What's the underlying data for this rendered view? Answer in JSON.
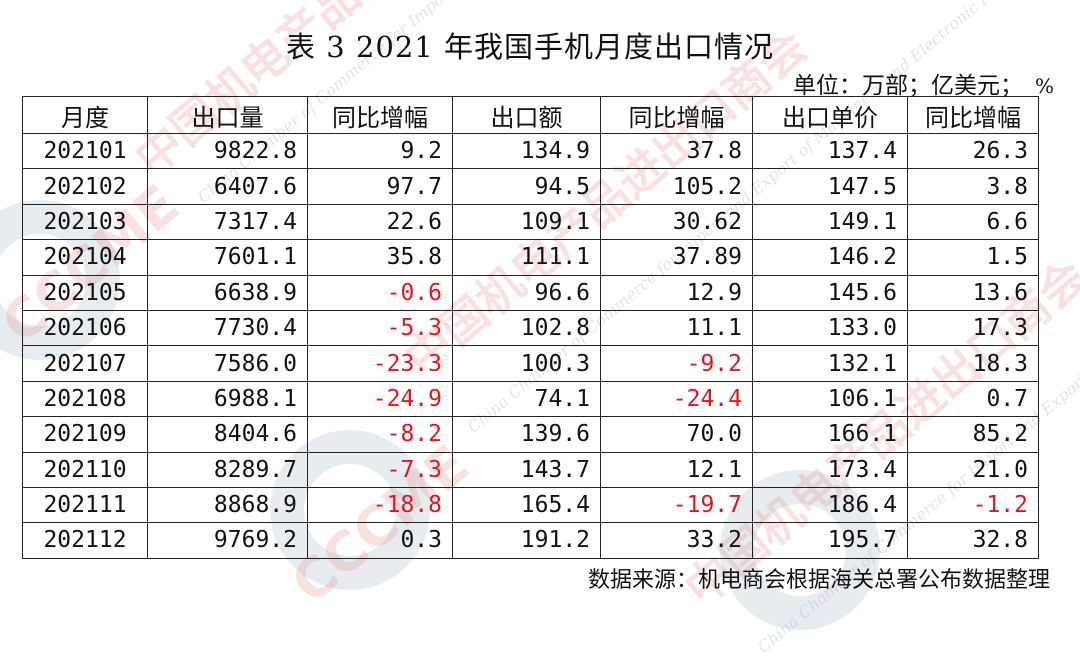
{
  "title": "表 3 2021 年我国手机月度出口情况",
  "unit": {
    "label": "单位：万部；亿美元；",
    "pct": "%"
  },
  "columns": [
    "月度",
    "出口量",
    "同比增幅",
    "出口额",
    "同比增幅",
    "出口单价",
    "同比增幅"
  ],
  "rows": [
    [
      "202101",
      "9822.8",
      "9.2",
      "134.9",
      "37.8",
      "137.4",
      "26.3"
    ],
    [
      "202102",
      "6407.6",
      "97.7",
      "94.5",
      "105.2",
      "147.5",
      "3.8"
    ],
    [
      "202103",
      "7317.4",
      "22.6",
      "109.1",
      "30.62",
      "149.1",
      "6.6"
    ],
    [
      "202104",
      "7601.1",
      "35.8",
      "111.1",
      "37.89",
      "146.2",
      "1.5"
    ],
    [
      "202105",
      "6638.9",
      "-0.6",
      "96.6",
      "12.9",
      "145.6",
      "13.6"
    ],
    [
      "202106",
      "7730.4",
      "-5.3",
      "102.8",
      "11.1",
      "133.0",
      "17.3"
    ],
    [
      "202107",
      "7586.0",
      "-23.3",
      "100.3",
      "-9.2",
      "132.1",
      "18.3"
    ],
    [
      "202108",
      "6988.1",
      "-24.9",
      "74.1",
      "-24.4",
      "106.1",
      "0.7"
    ],
    [
      "202109",
      "8404.6",
      "-8.2",
      "139.6",
      "70.0",
      "166.1",
      "85.2"
    ],
    [
      "202110",
      "8289.7",
      "-7.3",
      "143.7",
      "12.1",
      "173.4",
      "21.0"
    ],
    [
      "202111",
      "8868.9",
      "-18.8",
      "165.4",
      "-19.7",
      "186.4",
      "-1.2"
    ],
    [
      "202112",
      "9769.2",
      "0.3",
      "191.2",
      "33.2",
      "195.7",
      "32.8"
    ]
  ],
  "negative_color": "#e0171c",
  "source": "数据来源：机电商会根据海关总署公布数据整理",
  "watermark": {
    "cn": "中国机电产品进出口商会",
    "en": "China Chamber of Commerce for Import and Export of Machinery and Electronic Products",
    "logo": "CCCME"
  }
}
